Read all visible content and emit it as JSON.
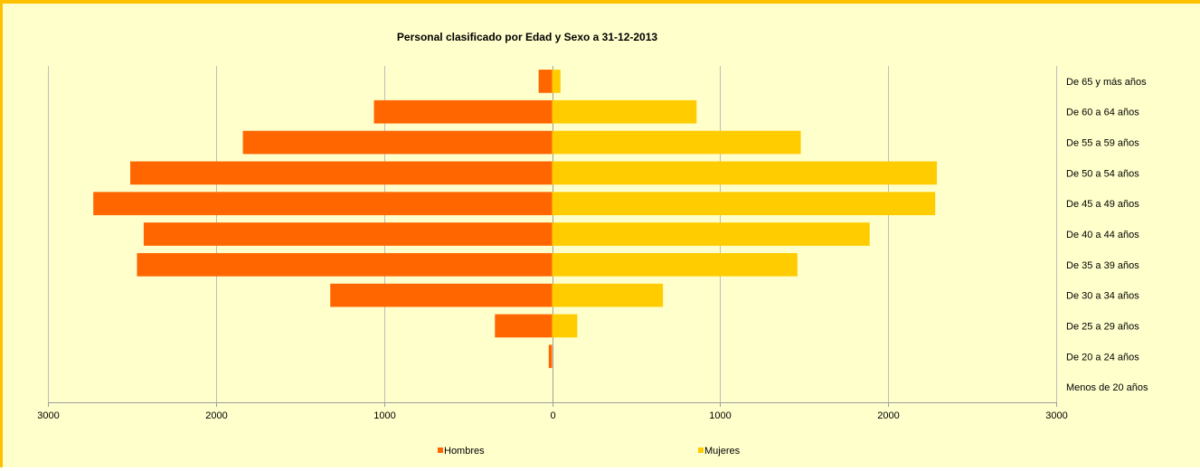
{
  "chart_data": {
    "type": "bar",
    "orientation": "horizontal",
    "title": "Personal clasificado por Edad y Sexo a 31-12-2013",
    "categories": [
      "De 65 y más años",
      "De 60 a 64 años",
      "De 55 a 59 años",
      "De 50 a 54 años",
      "De 45 a 49 años",
      "De 40 a 44 años",
      "De 35 a 39 años",
      "De 30 a 34 años",
      "De 25 a 29 años",
      "De 20 a 24 años",
      "Menos de 20 años"
    ],
    "series": [
      {
        "name": "Hombres",
        "color": "#ff6600",
        "values": [
          -80,
          -1060,
          -1840,
          -2510,
          -2730,
          -2430,
          -2470,
          -1320,
          -340,
          -20,
          0
        ]
      },
      {
        "name": "Mujeres",
        "color": "#ffcc00",
        "values": [
          50,
          860,
          1480,
          2290,
          2280,
          1890,
          1460,
          660,
          150,
          0,
          0
        ]
      }
    ],
    "xlim": [
      -3000,
      3000
    ],
    "x_ticks": [
      -3000,
      -2000,
      -1000,
      0,
      1000,
      2000,
      3000
    ],
    "x_tick_labels": [
      "3000",
      "2000",
      "1000",
      "0",
      "1000",
      "2000",
      "3000"
    ],
    "grid": true,
    "legend_position": "bottom",
    "background_color": "#ffffcc",
    "border_color": "#ffc000"
  }
}
